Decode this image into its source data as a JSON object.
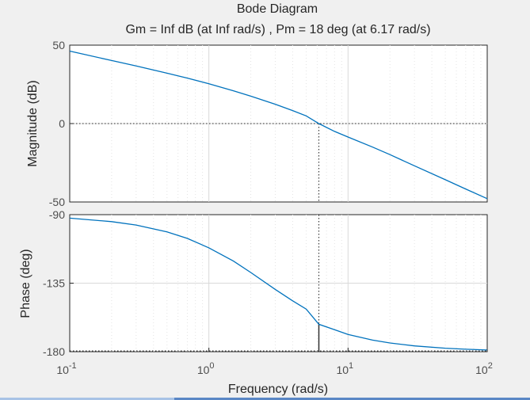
{
  "chart_data": {
    "type": "line",
    "title": "Bode Diagram",
    "subtitle": "Gm = Inf dB (at Inf rad/s) ,  Pm = 18 deg (at 6.17 rad/s)",
    "xlabel": "Frequency  (rad/s)",
    "xscale": "log",
    "xlim": [
      0.1,
      100
    ],
    "x_ticks": [
      {
        "base": "10",
        "exp": "-1"
      },
      {
        "base": "10",
        "exp": "0"
      },
      {
        "base": "10",
        "exp": "1"
      },
      {
        "base": "10",
        "exp": "2"
      }
    ],
    "grid": true,
    "color": "#0072bd",
    "crossover_frequency": 6.17,
    "panels": [
      {
        "ylabel": "Magnitude (dB)",
        "ylim": [
          -50,
          50
        ],
        "yticks": [
          "50",
          "0",
          "-50"
        ],
        "ytick_values": [
          50,
          0,
          -50
        ],
        "reference_line": 0,
        "series": [
          {
            "x": [
              0.1,
              0.2,
              0.3,
              0.5,
              0.7,
              1,
              1.5,
              2,
              3,
              4,
              5,
              6.17,
              8,
              10,
              15,
              20,
              30,
              50,
              70,
              100
            ],
            "y": [
              46.2,
              40.2,
              36.7,
              32.1,
              29.0,
              25.4,
              20.9,
              17.5,
              12.3,
              8.3,
              4.9,
              0,
              -5.0,
              -8.6,
              -15.0,
              -19.8,
              -26.9,
              -35.8,
              -41.7,
              -47.9
            ]
          }
        ]
      },
      {
        "ylabel": "Phase (deg)",
        "ylim": [
          -180,
          -90
        ],
        "yticks": [
          "-90",
          "-135",
          "-180"
        ],
        "ytick_values": [
          -90,
          -135,
          -180
        ],
        "series": [
          {
            "x": [
              0.1,
              0.2,
              0.3,
              0.5,
              0.7,
              1,
              1.5,
              2,
              3,
              4,
              5,
              6.17,
              8,
              10,
              15,
              20,
              30,
              50,
              70,
              100
            ],
            "y": [
              -92.3,
              -94.6,
              -96.8,
              -101.3,
              -105.6,
              -111.8,
              -120.5,
              -128.0,
              -139.1,
              -146.6,
              -152.0,
              -162,
              -165.6,
              -168.7,
              -172.4,
              -174.3,
              -176.2,
              -177.7,
              -178.4,
              -178.9
            ]
          }
        ]
      }
    ]
  }
}
